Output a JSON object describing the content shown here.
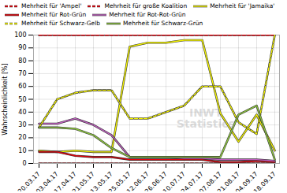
{
  "chart_data": {
    "type": "line",
    "ylabel": "Wahrscheinlichkeit [%]",
    "categories": [
      "20.03.17",
      "03.04.17",
      "17.04.17",
      "21.05.17",
      "13.05.17",
      "25.05.17",
      "12.06.17",
      "26.06.17",
      "10.07.17",
      "24.07.17",
      "07.08.17",
      "21.08.17",
      "04.09.17",
      "18.09.17"
    ],
    "series": [
      {
        "name": "Mehrheit für 'Ampel'",
        "color": "#e8000a",
        "line_style": "dashed",
        "values": [
          0,
          0,
          0,
          0,
          0,
          0,
          0,
          0,
          0,
          0,
          0,
          0,
          0,
          0
        ]
      },
      {
        "name": "Mehrheit für große Koalition",
        "color": "#e8000a",
        "line_style": "dashed",
        "values": [
          100,
          100,
          100,
          100,
          100,
          100,
          100,
          100,
          100,
          100,
          100,
          100,
          100,
          100
        ]
      },
      {
        "name": "Mehrheit für 'Jamaika'",
        "color": "#f5f500",
        "line_style": "solid",
        "values": [
          10,
          9,
          10,
          9,
          9,
          91,
          94,
          94,
          96,
          96,
          39,
          17,
          38,
          10
        ]
      },
      {
        "name": "Mehrheit für Rot-Grün",
        "color": "#e8000a",
        "line_style": "solid",
        "values": [
          9,
          9,
          6,
          5,
          5,
          3,
          3,
          3,
          3,
          3,
          1,
          1,
          2,
          1
        ]
      },
      {
        "name": "Mehrheit für Rot-Rot-Grün",
        "color": "#c060c0",
        "line_style": "solid",
        "values": [
          31,
          31,
          35,
          30,
          22,
          5,
          5,
          5,
          4,
          4,
          3,
          3,
          3,
          2
        ]
      },
      {
        "name": "Mehrheit für Schwarz-Gelb",
        "color": "#f5f500",
        "line_style": "dashed",
        "values": [
          28,
          50,
          55,
          57,
          57,
          35,
          35,
          40,
          45,
          60,
          60,
          32,
          23,
          100
        ]
      },
      {
        "name": "Mehrheit für Schwarz-Grün",
        "color": "#8dc63f",
        "line_style": "solid",
        "values": [
          28,
          28,
          27,
          22,
          12,
          5,
          5,
          5,
          5,
          5,
          5,
          38,
          45,
          3
        ]
      }
    ],
    "ylim": [
      0,
      100
    ],
    "yticks": [
      0,
      10,
      20,
      30,
      40,
      50,
      60,
      70,
      80,
      90,
      100
    ],
    "grid": true,
    "annotations": [
      "INWT\nStatistics"
    ]
  }
}
